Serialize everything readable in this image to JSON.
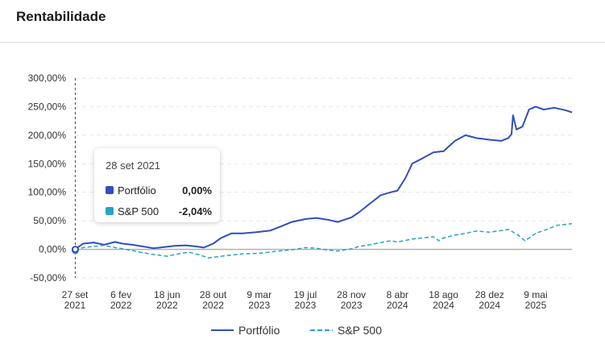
{
  "header": {
    "title": "Rentabilidade"
  },
  "colors": {
    "portfolio": "#2f4fbf",
    "sp500": "#27a3c6",
    "grid": "#e6e6e6",
    "zero": "#b0b0b0"
  },
  "tooltip": {
    "date": "28 set 2021",
    "rows": [
      {
        "name": "Portfólio",
        "value": "0,00%"
      },
      {
        "name": "S&P 500",
        "value": "-2,04%"
      }
    ]
  },
  "chart_data": {
    "type": "line",
    "y_ticks": [
      "300,00%",
      "250,00%",
      "200,00%",
      "150,00%",
      "100,00%",
      "50,00%",
      "0,00%",
      "-50,00%"
    ],
    "y_tick_values": [
      300,
      250,
      200,
      150,
      100,
      50,
      0,
      -50
    ],
    "ylim": [
      -50,
      300
    ],
    "x_ticks": [
      {
        "date": "2021-09-27",
        "line1": "27 set",
        "line2": "2021"
      },
      {
        "date": "2022-02-06",
        "line1": "6 fev",
        "line2": "2022"
      },
      {
        "date": "2022-06-18",
        "line1": "18 jun",
        "line2": "2022"
      },
      {
        "date": "2022-10-28",
        "line1": "28 out",
        "line2": "2022"
      },
      {
        "date": "2023-03-09",
        "line1": "9 mar",
        "line2": "2023"
      },
      {
        "date": "2023-07-19",
        "line1": "19 jul",
        "line2": "2023"
      },
      {
        "date": "2023-11-28",
        "line1": "28 nov",
        "line2": "2023"
      },
      {
        "date": "2024-04-08",
        "line1": "8 abr",
        "line2": "2024"
      },
      {
        "date": "2024-08-18",
        "line1": "18 ago",
        "line2": "2024"
      },
      {
        "date": "2024-12-28",
        "line1": "28 dez",
        "line2": "2024"
      },
      {
        "date": "2025-05-09",
        "line1": "9 mai",
        "line2": "2025"
      }
    ],
    "xlim": [
      "2021-09-27",
      "2025-08-21"
    ],
    "grid": true,
    "legend_position": "bottom",
    "series": [
      {
        "name": "Portfólio",
        "points": [
          [
            "2021-09-28",
            0
          ],
          [
            "2021-10-20",
            10
          ],
          [
            "2021-11-20",
            12
          ],
          [
            "2021-12-20",
            8
          ],
          [
            "2022-01-20",
            13
          ],
          [
            "2022-02-10",
            10
          ],
          [
            "2022-03-10",
            8
          ],
          [
            "2022-04-10",
            5
          ],
          [
            "2022-05-10",
            2
          ],
          [
            "2022-06-10",
            4
          ],
          [
            "2022-07-10",
            6
          ],
          [
            "2022-08-10",
            7
          ],
          [
            "2022-09-10",
            5
          ],
          [
            "2022-10-01",
            3
          ],
          [
            "2022-10-28",
            10
          ],
          [
            "2022-11-20",
            20
          ],
          [
            "2022-12-20",
            28
          ],
          [
            "2023-01-20",
            28
          ],
          [
            "2023-03-01",
            30
          ],
          [
            "2023-04-10",
            33
          ],
          [
            "2023-05-10",
            40
          ],
          [
            "2023-06-10",
            48
          ],
          [
            "2023-07-19",
            53
          ],
          [
            "2023-08-20",
            55
          ],
          [
            "2023-09-20",
            52
          ],
          [
            "2023-10-20",
            48
          ],
          [
            "2023-11-28",
            56
          ],
          [
            "2023-12-20",
            65
          ],
          [
            "2024-01-20",
            80
          ],
          [
            "2024-02-20",
            95
          ],
          [
            "2024-03-20",
            100
          ],
          [
            "2024-04-08",
            103
          ],
          [
            "2024-05-01",
            125
          ],
          [
            "2024-05-20",
            150
          ],
          [
            "2024-06-20",
            160
          ],
          [
            "2024-07-20",
            170
          ],
          [
            "2024-08-18",
            172
          ],
          [
            "2024-09-20",
            190
          ],
          [
            "2024-10-20",
            200
          ],
          [
            "2024-11-20",
            195
          ],
          [
            "2024-12-28",
            192
          ],
          [
            "2025-01-30",
            190
          ],
          [
            "2025-02-20",
            195
          ],
          [
            "2025-03-01",
            202
          ],
          [
            "2025-03-05",
            235
          ],
          [
            "2025-03-15",
            210
          ],
          [
            "2025-04-01",
            215
          ],
          [
            "2025-04-20",
            245
          ],
          [
            "2025-05-09",
            250
          ],
          [
            "2025-06-01",
            245
          ],
          [
            "2025-07-01",
            248
          ],
          [
            "2025-08-01",
            244
          ],
          [
            "2025-08-21",
            240
          ]
        ]
      },
      {
        "name": "S&P 500",
        "points": [
          [
            "2021-09-28",
            -2.04
          ],
          [
            "2021-10-20",
            3
          ],
          [
            "2021-11-20",
            5
          ],
          [
            "2021-12-20",
            7
          ],
          [
            "2022-01-20",
            3
          ],
          [
            "2022-02-10",
            1
          ],
          [
            "2022-03-10",
            -2
          ],
          [
            "2022-04-10",
            -6
          ],
          [
            "2022-05-10",
            -9
          ],
          [
            "2022-06-18",
            -12
          ],
          [
            "2022-07-20",
            -8
          ],
          [
            "2022-08-20",
            -5
          ],
          [
            "2022-09-20",
            -10
          ],
          [
            "2022-10-15",
            -15
          ],
          [
            "2022-11-20",
            -12
          ],
          [
            "2022-12-20",
            -10
          ],
          [
            "2023-01-20",
            -8
          ],
          [
            "2023-03-09",
            -7
          ],
          [
            "2023-04-20",
            -4
          ],
          [
            "2023-05-20",
            -2
          ],
          [
            "2023-06-20",
            0
          ],
          [
            "2023-07-19",
            3
          ],
          [
            "2023-08-20",
            2
          ],
          [
            "2023-09-20",
            -1
          ],
          [
            "2023-10-20",
            -3
          ],
          [
            "2023-11-28",
            1
          ],
          [
            "2023-12-20",
            5
          ],
          [
            "2024-01-20",
            8
          ],
          [
            "2024-02-20",
            12
          ],
          [
            "2024-03-20",
            15
          ],
          [
            "2024-04-08",
            13
          ],
          [
            "2024-05-20",
            18
          ],
          [
            "2024-06-20",
            20
          ],
          [
            "2024-07-20",
            22
          ],
          [
            "2024-08-05",
            15
          ],
          [
            "2024-08-18",
            20
          ],
          [
            "2024-09-20",
            25
          ],
          [
            "2024-10-20",
            28
          ],
          [
            "2024-11-20",
            32
          ],
          [
            "2024-12-28",
            30
          ],
          [
            "2025-01-30",
            33
          ],
          [
            "2025-02-20",
            35
          ],
          [
            "2025-03-20",
            25
          ],
          [
            "2025-04-08",
            15
          ],
          [
            "2025-04-25",
            22
          ],
          [
            "2025-05-09",
            28
          ],
          [
            "2025-06-10",
            35
          ],
          [
            "2025-07-10",
            42
          ],
          [
            "2025-08-21",
            45
          ]
        ]
      }
    ]
  }
}
